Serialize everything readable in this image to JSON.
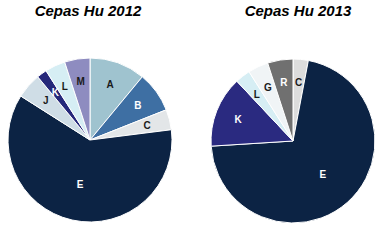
{
  "chart_data": [
    {
      "type": "pie",
      "title": "Cepas Hu 2012",
      "categories": [
        "A",
        "B",
        "C",
        "E",
        "J",
        "K",
        "L",
        "M"
      ],
      "values": [
        11,
        8,
        4,
        61,
        5,
        2,
        4,
        5
      ],
      "colors": [
        "#9fc3cf",
        "#3e6fa3",
        "#e3e6e8",
        "#0c2344",
        "#cfdde6",
        "#25287a",
        "#d6eef4",
        "#8e8cc0"
      ]
    },
    {
      "type": "pie",
      "title": "Cepas Hu 2013",
      "categories": [
        "C",
        "E",
        "K",
        "L",
        "G",
        "R"
      ],
      "values": [
        3,
        71,
        14,
        3,
        4,
        5
      ],
      "colors": [
        "#dcdcdc",
        "#0c2344",
        "#2a2a80",
        "#d6eef4",
        "#f0f4f6",
        "#707070"
      ]
    }
  ]
}
